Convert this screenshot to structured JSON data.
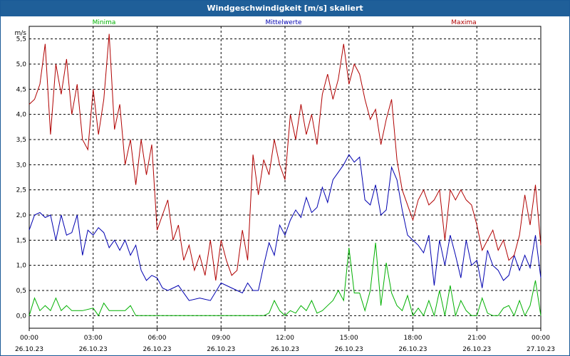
{
  "title": "Windgeschwindigkeit [m/s] skaliert",
  "colors": {
    "title_bg": "#1f5f99",
    "min": "#00b000",
    "mean": "#0000b0",
    "max": "#b00000"
  },
  "chart_data": {
    "type": "line",
    "title": "Windgeschwindigkeit [m/s] skaliert",
    "ylabel": "m/s",
    "ylim": [
      -0.25,
      5.75
    ],
    "yticks": [
      "0,0",
      "0,5",
      "1,0",
      "1,5",
      "2,0",
      "2,5",
      "3,0",
      "3,5",
      "4,0",
      "4,5",
      "5,0",
      "5,5"
    ],
    "xlim": [
      0,
      24
    ],
    "xticks": [
      {
        "time": "00:00",
        "date": "26.10.23"
      },
      {
        "time": "03:00",
        "date": "26.10.23"
      },
      {
        "time": "06:00",
        "date": "26.10.23"
      },
      {
        "time": "09:00",
        "date": "26.10.23"
      },
      {
        "time": "12:00",
        "date": "26.10.23"
      },
      {
        "time": "15:00",
        "date": "26.10.23"
      },
      {
        "time": "18:00",
        "date": "26.10.23"
      },
      {
        "time": "21:00",
        "date": "26.10.23"
      },
      {
        "time": "00:00",
        "date": "27.10.23"
      }
    ],
    "grid": true,
    "legend_position": "top",
    "series": [
      {
        "name": "Minima",
        "color": "#00b000",
        "hours": [
          0,
          0.25,
          0.5,
          0.75,
          1,
          1.25,
          1.5,
          1.75,
          2,
          2.5,
          3,
          3.25,
          3.5,
          3.75,
          4,
          4.5,
          4.75,
          5,
          5.5,
          6,
          9,
          11,
          11.25,
          11.5,
          11.75,
          12,
          12.25,
          12.5,
          12.75,
          13,
          13.25,
          13.5,
          13.75,
          14,
          14.25,
          14.5,
          14.75,
          15,
          15.25,
          15.5,
          15.75,
          16,
          16.25,
          16.5,
          16.75,
          17,
          17.25,
          17.5,
          17.75,
          18,
          18.25,
          18.5,
          18.75,
          19,
          19.25,
          19.5,
          19.75,
          20,
          20.25,
          20.5,
          20.75,
          21,
          21.25,
          21.5,
          21.75,
          22,
          22.25,
          22.5,
          22.75,
          23,
          23.25,
          23.5,
          23.75,
          24
        ],
        "values": [
          0.0,
          0.35,
          0.1,
          0.2,
          0.1,
          0.35,
          0.1,
          0.2,
          0.1,
          0.1,
          0.15,
          0.0,
          0.25,
          0.1,
          0.1,
          0.1,
          0.2,
          0.0,
          0.0,
          0.0,
          0.0,
          0.0,
          0.05,
          0.3,
          0.1,
          0.0,
          0.1,
          0.05,
          0.2,
          0.1,
          0.3,
          0.05,
          0.1,
          0.2,
          0.3,
          0.5,
          0.3,
          1.35,
          0.45,
          0.45,
          0.1,
          0.5,
          1.45,
          0.2,
          1.05,
          0.45,
          0.2,
          0.1,
          0.4,
          0.0,
          0.15,
          0.0,
          0.3,
          0.0,
          0.5,
          0.0,
          0.6,
          0.0,
          0.3,
          0.1,
          0.0,
          0.0,
          0.35,
          0.05,
          0.0,
          0.0,
          0.15,
          0.2,
          0.0,
          0.3,
          0.0,
          0.2,
          0.7,
          0.0
        ]
      },
      {
        "name": "Mittelwerte",
        "color": "#0000b0",
        "hours": [
          0,
          0.25,
          0.5,
          0.75,
          1,
          1.25,
          1.5,
          1.75,
          2,
          2.25,
          2.5,
          2.75,
          3,
          3.25,
          3.5,
          3.75,
          4,
          4.25,
          4.5,
          4.75,
          5,
          5.25,
          5.5,
          5.75,
          6,
          6.25,
          6.5,
          6.75,
          7,
          7.5,
          8,
          8.5,
          9,
          9.5,
          10,
          10.25,
          10.5,
          10.75,
          11,
          11.25,
          11.5,
          11.75,
          12,
          12.25,
          12.5,
          12.75,
          13,
          13.25,
          13.5,
          13.75,
          14,
          14.25,
          14.5,
          14.75,
          15,
          15.25,
          15.5,
          15.75,
          16,
          16.25,
          16.5,
          16.75,
          17,
          17.25,
          17.5,
          17.75,
          18,
          18.25,
          18.5,
          18.75,
          19,
          19.25,
          19.5,
          19.75,
          20,
          20.25,
          20.5,
          20.75,
          21,
          21.25,
          21.5,
          21.75,
          22,
          22.25,
          22.5,
          22.75,
          23,
          23.25,
          23.5,
          23.75,
          24
        ],
        "values": [
          1.7,
          2.0,
          2.05,
          1.95,
          2.0,
          1.5,
          2.0,
          1.6,
          1.65,
          2.0,
          1.2,
          1.7,
          1.6,
          1.75,
          1.65,
          1.35,
          1.5,
          1.3,
          1.5,
          1.2,
          1.4,
          0.9,
          0.7,
          0.8,
          0.75,
          0.55,
          0.5,
          0.55,
          0.6,
          0.3,
          0.35,
          0.3,
          0.65,
          0.55,
          0.45,
          0.65,
          0.5,
          0.5,
          1.0,
          1.45,
          1.2,
          1.8,
          1.6,
          1.9,
          2.1,
          1.95,
          2.35,
          2.05,
          2.15,
          2.55,
          2.25,
          2.7,
          2.85,
          3.0,
          3.2,
          3.05,
          3.15,
          2.3,
          2.2,
          2.6,
          2.0,
          2.1,
          2.95,
          2.7,
          2.1,
          1.6,
          1.5,
          1.4,
          1.25,
          1.6,
          0.6,
          1.5,
          1.0,
          1.6,
          1.2,
          0.75,
          1.5,
          1.0,
          1.1,
          0.55,
          1.3,
          1.0,
          0.9,
          0.7,
          0.8,
          1.2,
          0.9,
          1.2,
          0.95,
          1.6,
          0.75
        ]
      },
      {
        "name": "Maxima",
        "color": "#b00000",
        "hours": [
          0,
          0.25,
          0.5,
          0.75,
          1,
          1.25,
          1.5,
          1.75,
          2,
          2.25,
          2.5,
          2.75,
          3,
          3.25,
          3.5,
          3.75,
          4,
          4.25,
          4.5,
          4.75,
          5,
          5.25,
          5.5,
          5.75,
          6,
          6.25,
          6.5,
          6.75,
          7,
          7.25,
          7.5,
          7.75,
          8,
          8.25,
          8.5,
          8.75,
          9,
          9.25,
          9.5,
          9.75,
          10,
          10.25,
          10.5,
          10.75,
          11,
          11.25,
          11.5,
          11.75,
          12,
          12.25,
          12.5,
          12.75,
          13,
          13.25,
          13.5,
          13.75,
          14,
          14.25,
          14.5,
          14.75,
          15,
          15.25,
          15.5,
          15.75,
          16,
          16.25,
          16.5,
          16.75,
          17,
          17.25,
          17.5,
          17.75,
          18,
          18.25,
          18.5,
          18.75,
          19,
          19.25,
          19.5,
          19.75,
          20,
          20.25,
          20.5,
          20.75,
          21,
          21.25,
          21.5,
          21.75,
          22,
          22.25,
          22.5,
          22.75,
          23,
          23.25,
          23.5,
          23.75,
          24
        ],
        "values": [
          4.2,
          4.3,
          4.6,
          5.4,
          3.6,
          5.0,
          4.4,
          5.1,
          4.0,
          4.6,
          3.5,
          3.3,
          4.5,
          3.6,
          4.3,
          5.6,
          3.7,
          4.2,
          3.0,
          3.5,
          2.6,
          3.5,
          2.8,
          3.4,
          1.7,
          2.0,
          2.3,
          1.5,
          1.8,
          1.1,
          1.4,
          0.9,
          1.2,
          0.8,
          1.5,
          0.7,
          1.5,
          1.1,
          0.8,
          0.9,
          1.7,
          1.1,
          3.2,
          2.4,
          3.1,
          2.8,
          3.5,
          3.0,
          2.7,
          4.0,
          3.5,
          4.2,
          3.6,
          4.0,
          3.4,
          4.4,
          4.8,
          4.3,
          4.7,
          5.4,
          4.6,
          5.0,
          4.8,
          4.3,
          3.9,
          4.1,
          3.4,
          3.9,
          4.3,
          3.1,
          2.5,
          2.2,
          1.9,
          2.3,
          2.5,
          2.2,
          2.3,
          2.5,
          1.5,
          2.5,
          2.3,
          2.5,
          2.3,
          2.2,
          1.8,
          1.3,
          1.5,
          1.7,
          1.3,
          1.5,
          1.1,
          1.2,
          1.6,
          2.4,
          1.8,
          2.6,
          1.4
        ]
      }
    ]
  }
}
